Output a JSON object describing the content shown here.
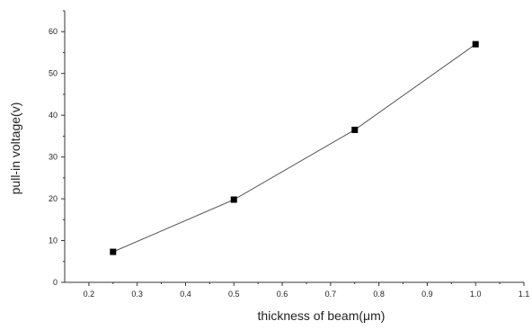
{
  "chart_data": {
    "type": "line",
    "title": "",
    "xlabel": "thickness of beam(μm)",
    "ylabel": "pull-in voltage(v)",
    "xlim": [
      0.15,
      1.1
    ],
    "ylim": [
      0,
      65
    ],
    "x_ticks": [
      "0.2",
      "0.3",
      "0.4",
      "0.5",
      "0.6",
      "0.7",
      "0.8",
      "0.9",
      "1.0",
      "1.1"
    ],
    "y_ticks": [
      "0",
      "10",
      "20",
      "30",
      "40",
      "50",
      "60"
    ],
    "grid": false,
    "legend": false,
    "series": [
      {
        "x": [
          0.25,
          0.5,
          0.75,
          1.0
        ],
        "y": [
          7.3,
          19.8,
          36.5,
          57.0
        ],
        "marker": "square",
        "color": "#000000",
        "line_color": "#555555"
      }
    ]
  }
}
